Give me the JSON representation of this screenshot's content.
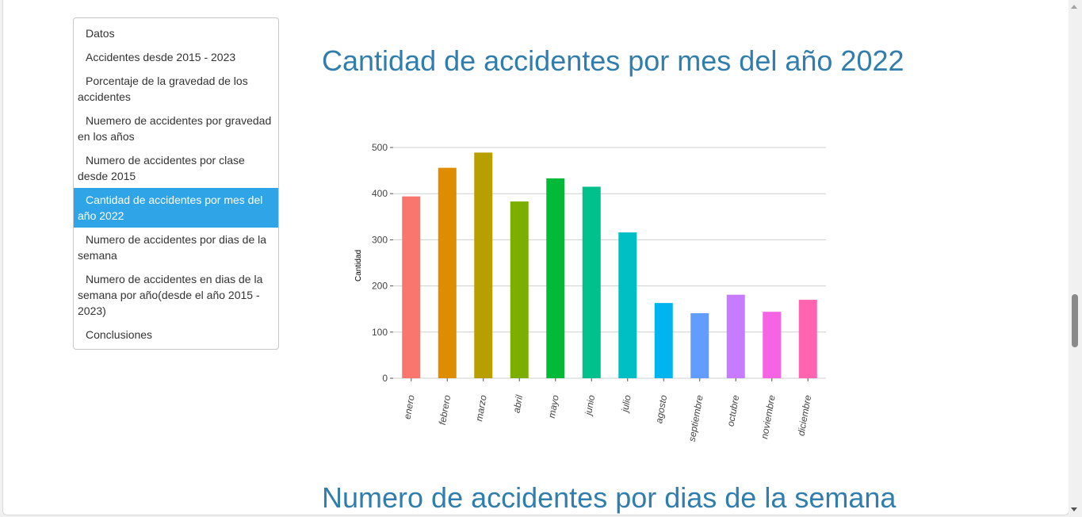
{
  "sidebar": {
    "items": [
      {
        "label": "Datos",
        "active": false
      },
      {
        "label": "Accidentes desde 2015 - 2023",
        "active": false
      },
      {
        "label": "Porcentaje de la gravedad de los accidentes",
        "active": false
      },
      {
        "label": "Nuemero de accidentes por gravedad en los años",
        "active": false
      },
      {
        "label": "Numero de accidentes por clase desde 2015",
        "active": false
      },
      {
        "label": "Cantidad de accidentes por mes del año 2022",
        "active": true
      },
      {
        "label": "Numero de accidentes por dias de la semana",
        "active": false
      },
      {
        "label": "Numero de accidentes en dias de la semana por año(desde el año 2015 - 2023)",
        "active": false
      },
      {
        "label": "Conclusiones",
        "active": false
      }
    ]
  },
  "main": {
    "section_title": "Cantidad de accidentes por mes del año 2022",
    "next_section_title": "Numero de accidentes por dias de la semana"
  },
  "chart_data": {
    "type": "bar",
    "title": "",
    "xlabel": "",
    "ylabel": "Cantidad",
    "ylim": [
      0,
      500
    ],
    "yticks": [
      0,
      100,
      200,
      300,
      400,
      500
    ],
    "grid": true,
    "categories": [
      "enero",
      "febrero",
      "marzo",
      "abril",
      "mayo",
      "junio",
      "julio",
      "agosto",
      "septiembre",
      "octubre",
      "noviembre",
      "diciembre"
    ],
    "values": [
      394,
      456,
      489,
      383,
      433,
      415,
      316,
      163,
      141,
      181,
      144,
      170
    ],
    "colors": [
      "#F8766D",
      "#DE8C00",
      "#B79F00",
      "#7CAE00",
      "#00BA38",
      "#00C08B",
      "#00BFC4",
      "#00B4F0",
      "#619CFF",
      "#C77CFF",
      "#F564E3",
      "#FF64B0"
    ]
  }
}
